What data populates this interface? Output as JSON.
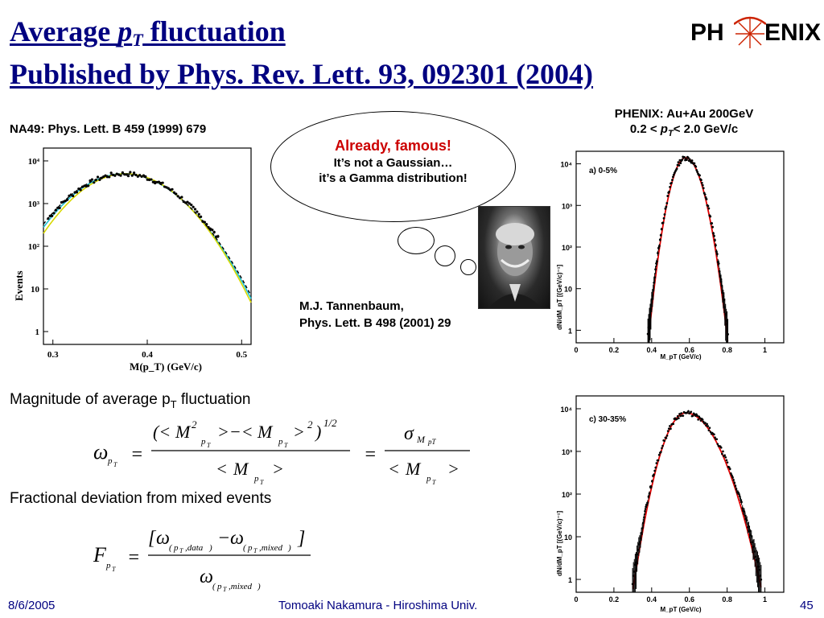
{
  "title": {
    "line1_prefix": "Average ",
    "line1_var": "p",
    "line1_sub": "T",
    "line1_suffix": " fluctuation",
    "line2": "Published by Phys. Rev. Lett. 93, 092301 (2004)"
  },
  "logo": {
    "left": "PH",
    "right": "ENIX"
  },
  "left_citation": "NA49: Phys. Lett. B 459 (1999) 679",
  "phenix_conditions": {
    "line1": "PHENIX: Au+Au 200GeV",
    "line2_pre": "0.2 < ",
    "line2_var": "p",
    "line2_sub": "T",
    "line2_post": "< 2.0 GeV/c"
  },
  "bubble": {
    "line1": "Already, famous!",
    "line2": "It’s not a Gaussian…",
    "line3": "it’s a Gamma distribution!"
  },
  "mj_citation": {
    "line1": "M.J. Tannenbaum,",
    "line2": "Phys. Lett. B 498 (2001) 29"
  },
  "magnitude_text": {
    "main": "Magnitude of average p",
    "sub": "T",
    "tail": " fluctuation"
  },
  "fractional_text": "Fractional deviation from mixed events",
  "footer": {
    "date": "8/6/2005",
    "author": "Tomoaki Nakamura - Hiroshima Univ.",
    "page": "45"
  },
  "colors": {
    "title": "#000080",
    "bubble_highlight": "#cc0000",
    "fit_red": "#e00000",
    "fit_cyan": "#20c0d0",
    "fit_yellow": "#d8d800"
  },
  "chart_data": [
    {
      "type": "line",
      "title": "",
      "xlabel": "M(p_T) (GeV/c)",
      "ylabel": "Events",
      "yscale": "log",
      "xlim": [
        0.29,
        0.51
      ],
      "ylim": [
        0.5,
        20000
      ],
      "xticks": [
        "0.3",
        "0.4",
        "0.5"
      ],
      "yticks": [
        "1",
        "10",
        "10²",
        "10³",
        "10⁴"
      ],
      "peak_x": 0.375,
      "peak_y": 5000,
      "series": [
        {
          "name": "",
          "color": "#000000",
          "style": "data"
        },
        {
          "name": "",
          "color": "#20c0d0",
          "style": "fit"
        },
        {
          "name": "",
          "color": "#d8d800",
          "style": "fit"
        }
      ]
    },
    {
      "type": "line",
      "panel_label": "a) 0-5%",
      "xlabel": "M_pT (GeV/c)",
      "ylabel": "dN/dM_pT [(GeV/c)⁻¹]",
      "yscale": "log",
      "xlim": [
        0,
        1.1
      ],
      "ylim": [
        0.5,
        20000
      ],
      "xticks": [
        "0",
        "0.2",
        "0.4",
        "0.6",
        "0.8",
        "1"
      ],
      "yticks": [
        "1",
        "10",
        "10²",
        "10³",
        "10⁴"
      ],
      "peak_x": 0.58,
      "peak_y": 14000,
      "series": [
        {
          "name": "",
          "color": "#000000",
          "style": "data"
        },
        {
          "name": "",
          "color": "#e00000",
          "style": "fit"
        }
      ]
    },
    {
      "type": "line",
      "panel_label": "c) 30-35%",
      "xlabel": "M_pT (GeV/c)",
      "ylabel": "dN/dM_pT [(GeV/c)⁻¹]",
      "yscale": "log",
      "xlim": [
        0,
        1.1
      ],
      "ylim": [
        0.5,
        20000
      ],
      "xticks": [
        "0",
        "0.2",
        "0.4",
        "0.6",
        "0.8",
        "1"
      ],
      "yticks": [
        "1",
        "10",
        "10²",
        "10³",
        "10⁴"
      ],
      "peak_x": 0.58,
      "peak_y": 8000,
      "series": [
        {
          "name": "",
          "color": "#000000",
          "style": "data"
        },
        {
          "name": "",
          "color": "#e00000",
          "style": "fit"
        }
      ]
    }
  ]
}
